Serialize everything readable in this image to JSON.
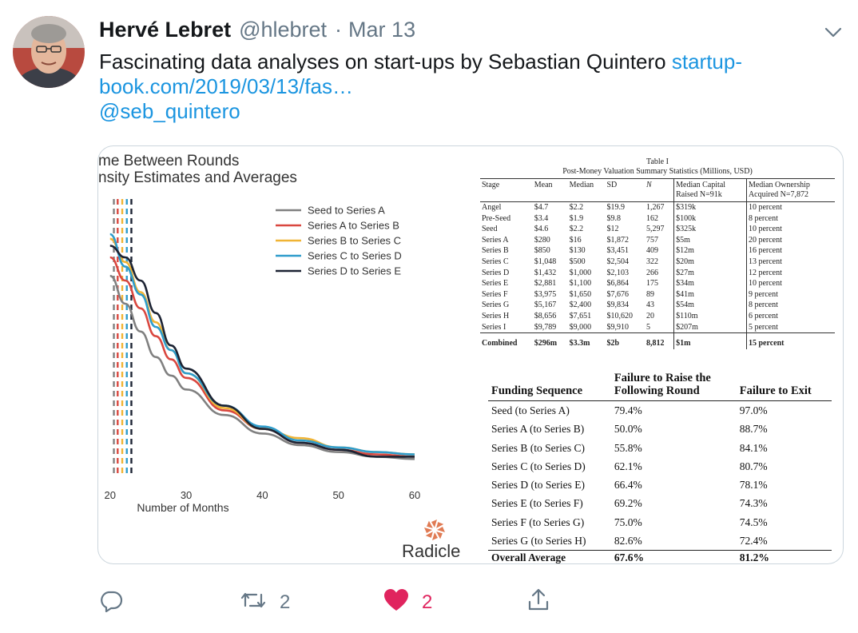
{
  "tweet": {
    "author_name": "Hervé Lebret",
    "author_handle": "@hlebret",
    "separator": "·",
    "date": "Mar 13",
    "text_line1_plain": "Fascinating data analyses on start-ups by Sebastian Quintero ",
    "link_part1": "startup-",
    "link_part2": "book.com/2019/03/13/fas…",
    "mention": "@seb_quintero",
    "icons": {
      "caret": "chevron-down-icon",
      "reply": "reply-icon",
      "retweet": "retweet-icon",
      "like": "heart-icon",
      "share": "share-icon"
    },
    "colors": {
      "link": "#1b95e0",
      "like": "#e0245e",
      "muted": "#657786"
    }
  },
  "actions": {
    "retweet_count": "2",
    "like_count": "2"
  },
  "media": {
    "chart_title_line1": "me Between Rounds",
    "chart_title_line2": "nsity Estimates and Averages",
    "brand": "Radicle",
    "table1": {
      "title": "Table I",
      "subtitle": "Post-Money Valuation Summary Statistics (Millions, USD)",
      "headers": [
        "Stage",
        "Mean",
        "Median",
        "SD",
        "N",
        "Median Capital Raised N=91k",
        "Median Ownership Acquired N=7,872"
      ],
      "header_lines": {
        "capital_1": "Median Capital",
        "capital_2": "Raised N=91k",
        "ownership_1": "Median Ownership",
        "ownership_2": "Acquired N=7,872"
      },
      "rows": [
        [
          "Angel",
          "$4.7",
          "$2.2",
          "$19.9",
          "1,267",
          "$319k",
          "10 percent"
        ],
        [
          "Pre-Seed",
          "$3.4",
          "$1.9",
          "$9.8",
          "162",
          "$100k",
          "8 percent"
        ],
        [
          "Seed",
          "$4.6",
          "$2.2",
          "$12",
          "5,297",
          "$325k",
          "10 percent"
        ],
        [
          "Series A",
          "$280",
          "$16",
          "$1,872",
          "757",
          "$5m",
          "20 percent"
        ],
        [
          "Series B",
          "$850",
          "$130",
          "$3,451",
          "409",
          "$12m",
          "16 percent"
        ],
        [
          "Series C",
          "$1,048",
          "$500",
          "$2,504",
          "322",
          "$20m",
          "13 percent"
        ],
        [
          "Series D",
          "$1,432",
          "$1,000",
          "$2,103",
          "266",
          "$27m",
          "12 percent"
        ],
        [
          "Series E",
          "$2,881",
          "$1,100",
          "$6,864",
          "175",
          "$34m",
          "10 percent"
        ],
        [
          "Series F",
          "$3,975",
          "$1,650",
          "$7,676",
          "89",
          "$41m",
          "9 percent"
        ],
        [
          "Series G",
          "$5,167",
          "$2,400",
          "$9,834",
          "43",
          "$54m",
          "8 percent"
        ],
        [
          "Series H",
          "$8,656",
          "$7,651",
          "$10,620",
          "20",
          "$110m",
          "6 percent"
        ],
        [
          "Series I",
          "$9,789",
          "$9,000",
          "$9,910",
          "5",
          "$207m",
          "5 percent"
        ]
      ],
      "combined": [
        "Combined",
        "$296m",
        "$3.3m",
        "$2b",
        "8,812",
        "$1m",
        "15 percent"
      ]
    },
    "table2": {
      "headers": [
        "Funding Sequence",
        "Failure to Raise the Following Round",
        "Failure to Exit"
      ],
      "header_lines": {
        "raise_1": "Failure to Raise the",
        "raise_2": "Following Round"
      },
      "rows": [
        [
          "Seed (to Series A)",
          "79.4%",
          "97.0%"
        ],
        [
          "Series A (to Series B)",
          "50.0%",
          "88.7%"
        ],
        [
          "Series B (to Series C)",
          "55.8%",
          "84.1%"
        ],
        [
          "Series C (to Series D)",
          "62.1%",
          "80.7%"
        ],
        [
          "Series D (to Series E)",
          "66.4%",
          "78.1%"
        ],
        [
          "Series E (to Series F)",
          "69.2%",
          "74.3%"
        ],
        [
          "Series F (to Series G)",
          "75.0%",
          "74.5%"
        ],
        [
          "Series G (to Series H)",
          "82.6%",
          "72.4%"
        ]
      ],
      "overall": [
        "Overall Average",
        "67.6%",
        "81.2%"
      ]
    }
  },
  "chart_data": {
    "type": "line",
    "title": "",
    "xlabel": "Number of Months",
    "ylabel": "",
    "x_ticks": [
      20,
      30,
      40,
      50,
      60
    ],
    "xlim": [
      19.5,
      60
    ],
    "ylim": [
      0,
      1
    ],
    "legend_position": "top-right",
    "grid": false,
    "averages": [
      {
        "name": "Seed to Series A",
        "x": 20.5,
        "color": "#808080"
      },
      {
        "name": "Series A to Series B",
        "x": 21.0,
        "color": "#d9473f"
      },
      {
        "name": "Series B to Series C",
        "x": 21.6,
        "color": "#f0b435"
      },
      {
        "name": "Series C to Series D",
        "x": 22.2,
        "color": "#2e9ccb"
      },
      {
        "name": "Series D to Series E",
        "x": 22.8,
        "color": "#1c2333"
      }
    ],
    "series": [
      {
        "name": "Seed to Series A",
        "color": "#808080",
        "x": [
          20,
          22,
          24,
          26,
          28,
          30,
          35,
          40,
          45,
          50,
          55,
          60
        ],
        "y": [
          0.82,
          0.7,
          0.58,
          0.47,
          0.39,
          0.33,
          0.22,
          0.14,
          0.09,
          0.06,
          0.04,
          0.03
        ]
      },
      {
        "name": "Series A to Series B",
        "color": "#d9473f",
        "x": [
          20,
          22,
          24,
          26,
          28,
          30,
          35,
          40,
          45,
          50,
          55,
          60
        ],
        "y": [
          0.9,
          0.8,
          0.68,
          0.56,
          0.46,
          0.38,
          0.24,
          0.16,
          0.1,
          0.07,
          0.05,
          0.04
        ]
      },
      {
        "name": "Series B to Series C",
        "color": "#f0b435",
        "x": [
          20,
          22,
          24,
          26,
          28,
          30,
          35,
          40,
          45,
          50,
          55,
          60
        ],
        "y": [
          0.98,
          0.88,
          0.75,
          0.62,
          0.5,
          0.4,
          0.25,
          0.16,
          0.12,
          0.08,
          0.06,
          0.05
        ]
      },
      {
        "name": "Series C to Series D",
        "color": "#2e9ccb",
        "x": [
          20,
          22,
          24,
          26,
          28,
          30,
          35,
          40,
          45,
          50,
          55,
          60
        ],
        "y": [
          1.0,
          0.86,
          0.74,
          0.6,
          0.5,
          0.4,
          0.26,
          0.17,
          0.11,
          0.08,
          0.06,
          0.05
        ]
      },
      {
        "name": "Series D to Series E",
        "color": "#1c2333",
        "x": [
          20,
          22,
          24,
          26,
          28,
          30,
          35,
          40,
          45,
          50,
          55,
          60
        ],
        "y": [
          0.95,
          0.9,
          0.8,
          0.66,
          0.52,
          0.42,
          0.26,
          0.16,
          0.1,
          0.07,
          0.04,
          0.04
        ]
      }
    ]
  }
}
